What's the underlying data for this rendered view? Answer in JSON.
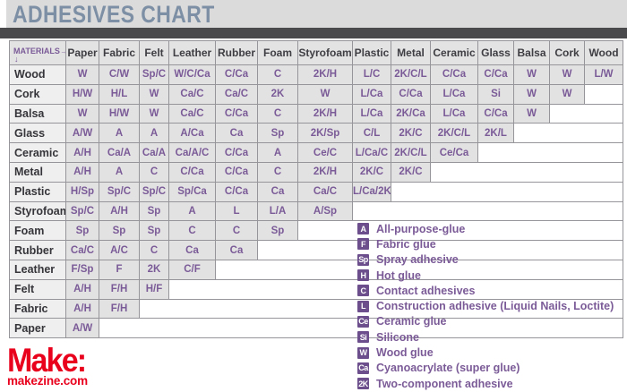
{
  "brand": {
    "logo_text": "Make:",
    "site": "makezine.com"
  },
  "colors": {
    "accent_purple": "#7b5b97",
    "badge_purple": "#6b4e8b",
    "title_gray_blue": "#7d8fa4",
    "divider_dark": "#4a4a4d",
    "brand_red": "#e8001c",
    "cell_gray": "#e2e2e3",
    "label_gray": "#efefef"
  },
  "corner": {
    "label": "MATERIALS",
    "right_arrow": "→",
    "down_arrow": "↓"
  },
  "chart_data": {
    "type": "table",
    "title": "ADHESIVES CHART",
    "columns": [
      "Paper",
      "Fabric",
      "Felt",
      "Leather",
      "Rubber",
      "Foam",
      "Styrofoam",
      "Plastic",
      "Metal",
      "Ceramic",
      "Glass",
      "Balsa",
      "Cork",
      "Wood"
    ],
    "rows": [
      {
        "material": "Wood",
        "cells": [
          "W",
          "C/W",
          "Sp/C",
          "W/C/Ca",
          "C/Ca",
          "C",
          "2K/H",
          "L/C",
          "2K/C/L",
          "C/Ca",
          "C/Ca",
          "W",
          "W",
          "L/W"
        ]
      },
      {
        "material": "Cork",
        "cells": [
          "H/W",
          "H/L",
          "W",
          "Ca/C",
          "Ca/C",
          "2K",
          "W",
          "L/Ca",
          "C/Ca",
          "L/Ca",
          "Si",
          "W",
          "W"
        ]
      },
      {
        "material": "Balsa",
        "cells": [
          "W",
          "H/W",
          "W",
          "Ca/C",
          "C/Ca",
          "C",
          "2K/H",
          "L/Ca",
          "2K/Ca",
          "L/Ca",
          "C/Ca",
          "W"
        ]
      },
      {
        "material": "Glass",
        "cells": [
          "A/W",
          "A",
          "A",
          "A/Ca",
          "Ca",
          "Sp",
          "2K/Sp",
          "C/L",
          "2K/C",
          "2K/C/L",
          "2K/L"
        ]
      },
      {
        "material": "Ceramic",
        "cells": [
          "A/H",
          "Ca/A",
          "Ca/A",
          "Ca/A/C",
          "C/Ca",
          "A",
          "Ce/C",
          "L/Ca/C",
          "2K/C/L",
          "Ce/Ca"
        ]
      },
      {
        "material": "Metal",
        "cells": [
          "A/H",
          "A",
          "C",
          "C/Ca",
          "C/Ca",
          "C",
          "2K/H",
          "2K/C",
          "2K/C"
        ]
      },
      {
        "material": "Plastic",
        "cells": [
          "H/Sp",
          "Sp/C",
          "Sp/C",
          "Sp/Ca",
          "C/Ca",
          "Ca",
          "Ca/C",
          "L/Ca/2K"
        ]
      },
      {
        "material": "Styrofoam",
        "cells": [
          "Sp/C",
          "A/H",
          "Sp",
          "A",
          "L",
          "L/A",
          "A/Sp"
        ]
      },
      {
        "material": "Foam",
        "cells": [
          "Sp",
          "Sp",
          "Sp",
          "C",
          "C",
          "Sp"
        ]
      },
      {
        "material": "Rubber",
        "cells": [
          "Ca/C",
          "A/C",
          "C",
          "Ca",
          "Ca"
        ]
      },
      {
        "material": "Leather",
        "cells": [
          "F/Sp",
          "F",
          "2K",
          "C/F"
        ]
      },
      {
        "material": "Felt",
        "cells": [
          "A/H",
          "F/H",
          "H/F"
        ]
      },
      {
        "material": "Fabric",
        "cells": [
          "A/H",
          "F/H"
        ]
      },
      {
        "material": "Paper",
        "cells": [
          "A/W"
        ]
      }
    ],
    "legend": [
      {
        "code": "A",
        "label": "All-purpose-glue"
      },
      {
        "code": "F",
        "label": "Fabric glue"
      },
      {
        "code": "Sp",
        "label": "Spray adhesive"
      },
      {
        "code": "H",
        "label": "Hot glue"
      },
      {
        "code": "C",
        "label": "Contact adhesives"
      },
      {
        "code": "L",
        "label": "Construction adhesive (Liquid Nails, Loctite)"
      },
      {
        "code": "Ce",
        "label": "Ceramic glue"
      },
      {
        "code": "Si",
        "label": "Silicone"
      },
      {
        "code": "W",
        "label": "Wood glue"
      },
      {
        "code": "Ca",
        "label": "Cyanoacrylate (super glue)"
      },
      {
        "code": "2K",
        "label": "Two-component adhesive"
      }
    ]
  }
}
